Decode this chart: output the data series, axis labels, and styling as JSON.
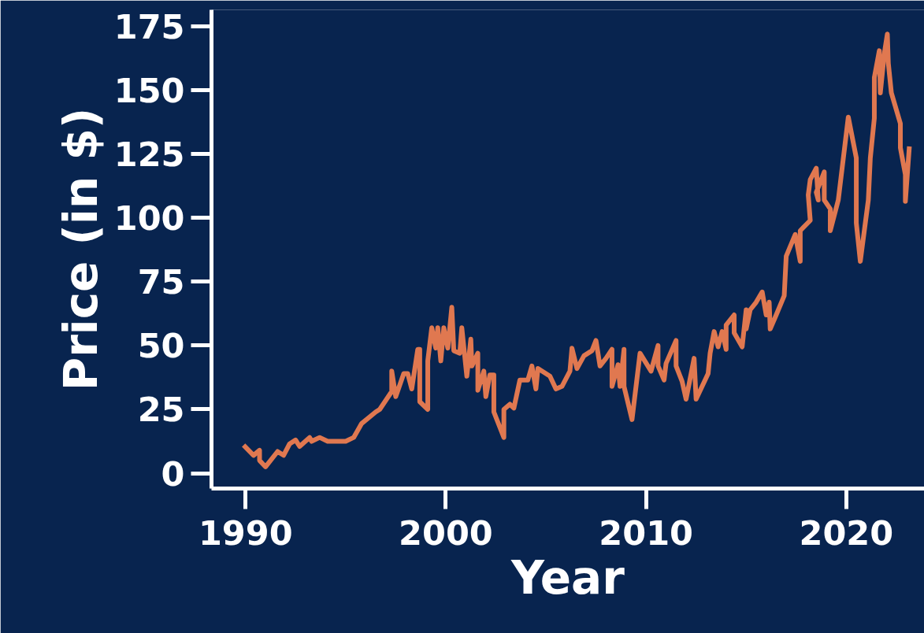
{
  "chart_data": {
    "type": "line",
    "xlabel": "Year",
    "ylabel": "Price (in $)",
    "xlim": [
      1988.3,
      2023.9
    ],
    "ylim": [
      -6,
      181.5
    ],
    "xticks": [
      1990,
      2000,
      2010,
      2020
    ],
    "yticks": [
      0,
      25,
      50,
      75,
      100,
      125,
      150,
      175
    ],
    "series": [
      {
        "color": "#e07850",
        "x": [
          1989.9,
          1990.4,
          1990.7,
          1990.7,
          1991.0,
          1991.6,
          1991.9,
          1992.2,
          1992.5,
          1992.7,
          1993.2,
          1993.3,
          1993.7,
          1994.1,
          1995.0,
          1995.4,
          1995.8,
          1996.5,
          1996.7,
          1997.3,
          1997.3,
          1997.5,
          1997.9,
          1998.1,
          1998.3,
          1998.6,
          1998.7,
          1998.7,
          1999.1,
          1999.1,
          1999.3,
          1999.5,
          1999.6,
          1999.75,
          1999.9,
          2000.1,
          2000.3,
          2000.4,
          2000.7,
          2000.8,
          2001.05,
          2001.25,
          2001.3,
          2001.6,
          2001.6,
          2001.9,
          2002.0,
          2002.2,
          2002.4,
          2002.4,
          2002.9,
          2002.9,
          2003.2,
          2003.4,
          2003.7,
          2004.1,
          2004.3,
          2004.5,
          2004.6,
          2005.2,
          2005.5,
          2005.8,
          2006.2,
          2006.3,
          2006.55,
          2006.9,
          2007.3,
          2007.5,
          2007.7,
          2008.0,
          2008.3,
          2008.3,
          2008.6,
          2008.7,
          2008.9,
          2008.9,
          2009.3,
          2009.7,
          2010.25,
          2010.6,
          2010.6,
          2010.9,
          2011.0,
          2011.5,
          2011.5,
          2011.8,
          2012.0,
          2012.4,
          2012.5,
          2013.1,
          2013.2,
          2013.4,
          2013.6,
          2013.8,
          2014.0,
          2014.0,
          2014.4,
          2014.4,
          2014.8,
          2015.0,
          2015.0,
          2015.2,
          2015.5,
          2015.8,
          2016.0,
          2016.15,
          2016.2,
          2016.5,
          2016.9,
          2017.0,
          2017.45,
          2017.7,
          2017.7,
          2018.2,
          2018.1,
          2018.2,
          2018.5,
          2018.6,
          2018.5,
          2018.9,
          2018.9,
          2019.2,
          2019.2,
          2019.6,
          2020.1,
          2020.5,
          2020.5,
          2020.7,
          2021.1,
          2021.2,
          2021.4,
          2021.4,
          2021.65,
          2021.7,
          2021.9,
          2022.05,
          2022.1,
          2022.25,
          2022.7,
          2022.7,
          2022.95,
          2022.95,
          2023.15
        ],
        "values": [
          11,
          7,
          9,
          5,
          2.5,
          8.5,
          7,
          11.5,
          13,
          10.5,
          14,
          12.5,
          14,
          12.5,
          12.5,
          14,
          19.5,
          24,
          25,
          32,
          40,
          30,
          39,
          39,
          33,
          48.5,
          48.5,
          28,
          25,
          44,
          57,
          49,
          57,
          44,
          57,
          49,
          65,
          48,
          47,
          57,
          38,
          52.5,
          42,
          47,
          32.5,
          40,
          30,
          38.5,
          38.5,
          24,
          14,
          25,
          27,
          25.5,
          36.5,
          36.5,
          42,
          33,
          41,
          38,
          33,
          34,
          40,
          49,
          41,
          46,
          48,
          52,
          42,
          45,
          48.5,
          34,
          42.5,
          34,
          48.5,
          34,
          21,
          47,
          40,
          50,
          42,
          36.5,
          43,
          52,
          42,
          36,
          29,
          45,
          29,
          39,
          47,
          55.5,
          49.5,
          55.5,
          48.5,
          58,
          62,
          55,
          49.5,
          64,
          56.5,
          64,
          67,
          71,
          62,
          67,
          56.5,
          62,
          69.5,
          85,
          93.5,
          83,
          95,
          99,
          109,
          115,
          119.5,
          107,
          110,
          118,
          107,
          103.5,
          95,
          107,
          139.5,
          123.5,
          98,
          83,
          107,
          123.5,
          139,
          155,
          165.5,
          149,
          164.5,
          172,
          160.5,
          149,
          137,
          127.5,
          117,
          106.5,
          128
        ]
      }
    ]
  }
}
